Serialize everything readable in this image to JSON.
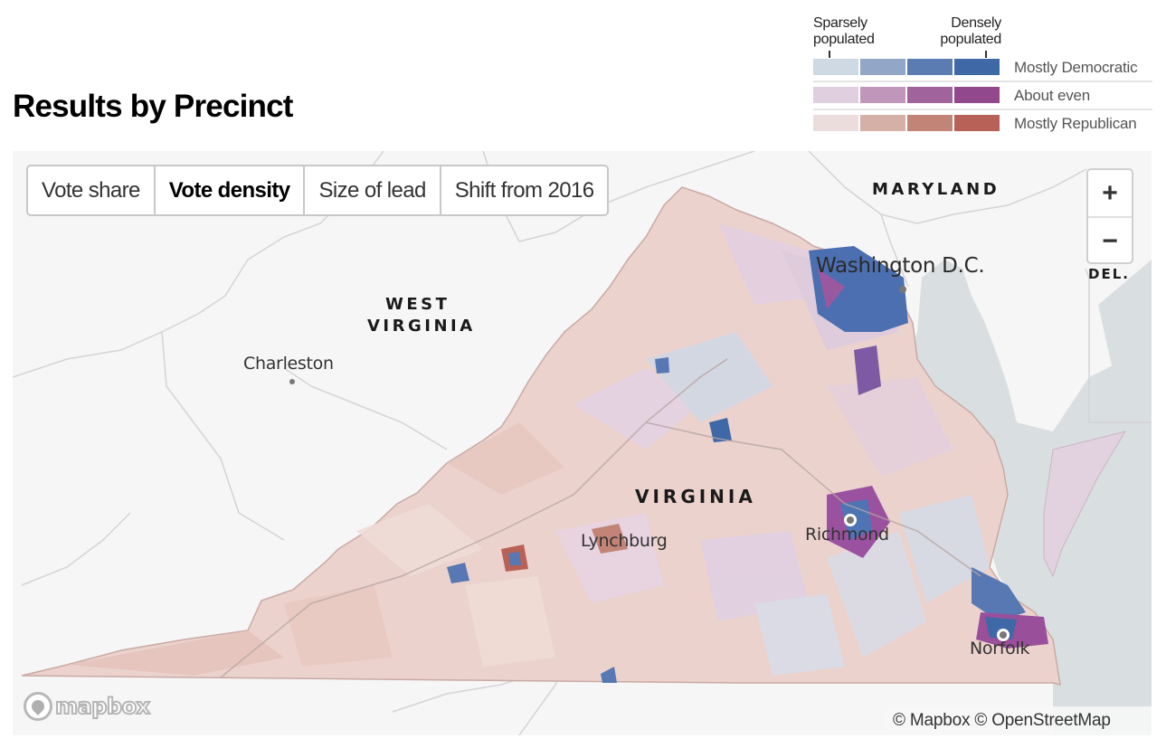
{
  "header": {
    "title": "Results by Precinct"
  },
  "legend": {
    "left_caption": "Sparsely populated",
    "right_caption": "Densely populated",
    "rows": [
      {
        "label": "Mostly Democratic",
        "colors": [
          "#cfd9e4",
          "#92a6c8",
          "#5b7cb3",
          "#3f68a6"
        ]
      },
      {
        "label": "About even",
        "colors": [
          "#e0cfdf",
          "#c096ba",
          "#a1639c",
          "#92488c"
        ]
      },
      {
        "label": "Mostly Republican",
        "colors": [
          "#ebdddc",
          "#d5b0a6",
          "#c28476",
          "#b86156"
        ]
      }
    ]
  },
  "tabs": [
    {
      "label": "Vote share",
      "active": false
    },
    {
      "label": "Vote density",
      "active": true
    },
    {
      "label": "Size of lead",
      "active": false
    },
    {
      "label": "Shift from 2016",
      "active": false
    }
  ],
  "zoom_controls": {
    "zoom_in": "+",
    "zoom_out": "−"
  },
  "map": {
    "states": {
      "maryland": "MARYLAND",
      "west_virginia_line1": "WEST",
      "west_virginia_line2": "VIRGINIA",
      "virginia": "VIRGINIA",
      "delaware": "DEL."
    },
    "cities": {
      "washington": "Washington D.C.",
      "charleston": "Charleston",
      "lynchburg": "Lynchburg",
      "richmond": "Richmond",
      "norfolk": "Norfolk"
    },
    "colors": {
      "land": "#f6f6f6",
      "water": "#d9dfe1",
      "boundary": "#cfcfcf",
      "republican_base": "#ecd2cd",
      "democratic_dense": "#3f68a6",
      "even_dense": "#92488c"
    }
  },
  "footer": {
    "logo_text": "mapbox",
    "attribution": "© Mapbox © OpenStreetMap"
  }
}
